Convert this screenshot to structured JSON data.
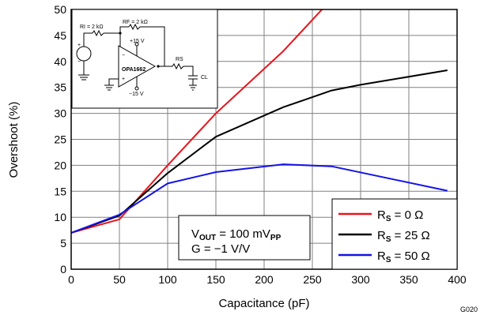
{
  "chart_data": {
    "type": "line",
    "title": "",
    "xlabel": "Capacitance (pF)",
    "ylabel": "Overshoot (%)",
    "xlim": [
      0,
      400
    ],
    "ylim": [
      0,
      50
    ],
    "xticks": [
      0,
      50,
      100,
      150,
      200,
      250,
      300,
      350,
      400
    ],
    "yticks": [
      0,
      5,
      10,
      15,
      20,
      25,
      30,
      35,
      40,
      45,
      50
    ],
    "grid": true,
    "legend_position": "bottom-right",
    "series": [
      {
        "name_main": "R",
        "name_sub": "S",
        "name_rest": " = 0 Ω",
        "color": "#e8141c",
        "x": [
          0,
          50,
          100,
          150,
          220,
          265
        ],
        "y": [
          7,
          9.6,
          20,
          30,
          42,
          51
        ]
      },
      {
        "name_main": "R",
        "name_sub": "S",
        "name_rest": " = 25 Ω",
        "color": "#000000",
        "x": [
          0,
          50,
          100,
          150,
          220,
          270,
          300,
          390
        ],
        "y": [
          7,
          10.3,
          18.5,
          25.5,
          31.2,
          34.4,
          35.5,
          38.3
        ]
      },
      {
        "name_main": "R",
        "name_sub": "S",
        "name_rest": " = 50 Ω",
        "color": "#1414e6",
        "x": [
          0,
          50,
          100,
          150,
          220,
          270,
          390
        ],
        "y": [
          7,
          10.5,
          16.5,
          18.7,
          20.2,
          19.8,
          15.1
        ]
      }
    ],
    "annotations": {
      "vout": {
        "main": "V",
        "sub": "OUT",
        "mid": " = 100 mV",
        "sub2": "PP"
      },
      "gain": "G = −1 V/V"
    },
    "figure_id": "G020",
    "inset_schematic": {
      "ri_label": "RI = 2 kΩ",
      "rf_label": "RF = 2 kΩ",
      "vpos": "+15 V",
      "vneg": "−15 V",
      "part": "OPA1662",
      "rs": "RS",
      "cl": "CL",
      "minus": "−",
      "plus": "+",
      "src_plus": "+",
      "src_minus": "−"
    }
  }
}
